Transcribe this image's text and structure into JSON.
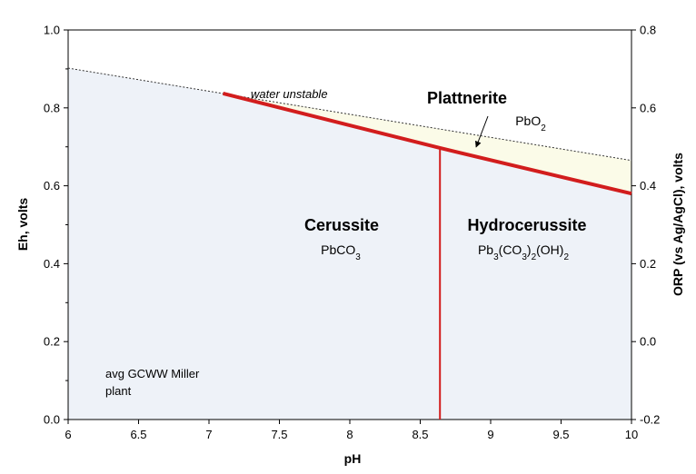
{
  "chart_data": {
    "type": "line",
    "xlabel": "pH",
    "ylabel": "Eh, volts",
    "y2label": "ORP (vs Ag/AgCl), volts",
    "xlim": [
      6,
      10
    ],
    "ylim": [
      0,
      1
    ],
    "y2lim": [
      -0.2,
      0.8
    ],
    "x_ticks": [
      "6",
      "6.5",
      "7",
      "7.5",
      "8",
      "8.5",
      "9",
      "9.5",
      "10"
    ],
    "y_ticks": [
      "0.0",
      "0.2",
      "0.4",
      "0.6",
      "0.8",
      "1.0"
    ],
    "y2_ticks": [
      "-0.2",
      "0.0",
      "0.2",
      "0.4",
      "0.6",
      "0.8"
    ],
    "grid": false,
    "colors": {
      "stable_fill": "#eef2f8",
      "plattnerite_fill": "#fbfbe8",
      "boundary": "#d21d1d",
      "water_line": "#333333"
    },
    "series": [
      {
        "role": "water-upper-limit",
        "x": [
          6,
          10
        ],
        "y": [
          0.902,
          0.665
        ],
        "style": "dotted"
      },
      {
        "role": "plattnerite-boundary",
        "x": [
          7.1,
          8.64,
          10
        ],
        "y": [
          0.837,
          0.697,
          0.58
        ],
        "style": "solid-thick"
      },
      {
        "role": "cerussite-hydrocerussite-boundary",
        "x": [
          8.64,
          8.64
        ],
        "y": [
          0,
          0.697
        ],
        "style": "solid-thin"
      }
    ],
    "regions": [
      {
        "name": "Cerussite",
        "formula_base": "PbCO",
        "formula_sub": "3"
      },
      {
        "name": "Hydrocerussite",
        "formula_parts": [
          "Pb",
          "3",
          "(CO",
          "3",
          ")",
          "2",
          "(OH)",
          "2"
        ]
      },
      {
        "name": "Plattnerite",
        "formula_base": "PbO",
        "formula_sub": "2"
      }
    ],
    "annotations": {
      "water": "water unstable",
      "plant_line1": "avg GCWW Miller",
      "plant_line2": "plant"
    }
  }
}
